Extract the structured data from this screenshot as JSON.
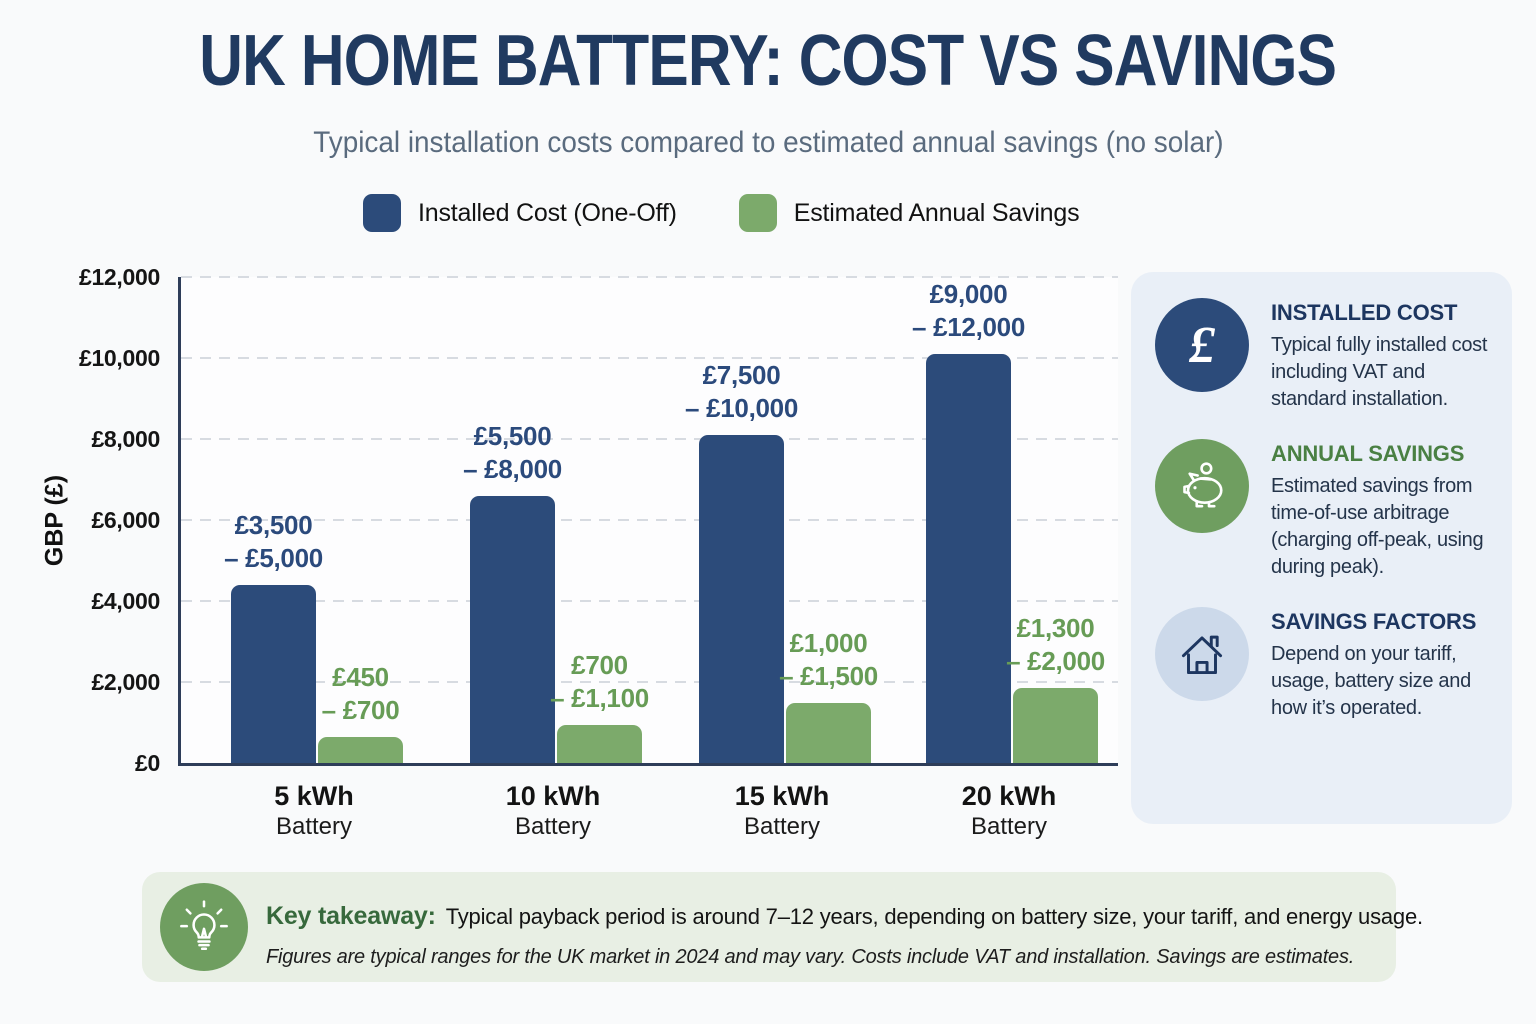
{
  "header": {
    "title": "UK HOME BATTERY: COST VS SAVINGS",
    "subtitle": "Typical installation costs compared to estimated annual savings (no solar)"
  },
  "legend": {
    "items": [
      {
        "label": "Installed Cost (One-Off)",
        "color": "#2c4b7a"
      },
      {
        "label": "Estimated Annual Savings",
        "color": "#7caa6b"
      }
    ]
  },
  "chart_data": {
    "type": "bar",
    "title": "UK Home Battery: Cost vs Savings",
    "categories": [
      "5 kWh",
      "10 kWh",
      "15 kWh",
      "20 kWh"
    ],
    "category_sublabel": "Battery",
    "xlabel": "",
    "ylabel": "GBP (£)",
    "ylim": [
      0,
      12000
    ],
    "ytick_values": [
      0,
      2000,
      4000,
      6000,
      8000,
      10000,
      12000
    ],
    "ytick_labels": [
      "£0",
      "£2,000",
      "£4,000",
      "£6,000",
      "£8,000",
      "£10,000",
      "£12,000"
    ],
    "grid": "horizontal-dashed",
    "legend_position": "top-center",
    "series": [
      {
        "name": "Installed Cost (One-Off)",
        "color": "#2c4b7a",
        "label_color": "#2b4a7c",
        "ranges_gbp": [
          [
            3500,
            5000
          ],
          [
            5500,
            8000
          ],
          [
            7500,
            10000
          ],
          [
            9000,
            12000
          ]
        ],
        "label_lines": [
          [
            "£3,500",
            "– £5,000"
          ],
          [
            "£5,500",
            "– £8,000"
          ],
          [
            "£7,500",
            "– £10,000"
          ],
          [
            "£9,000",
            "– £12,000"
          ]
        ],
        "plotted_values": [
          4400,
          6600,
          8100,
          10100
        ]
      },
      {
        "name": "Estimated Annual Savings",
        "color": "#7caa6b",
        "label_color": "#679c56",
        "ranges_gbp": [
          [
            450,
            700
          ],
          [
            700,
            1100
          ],
          [
            1000,
            1500
          ],
          [
            1300,
            2000
          ]
        ],
        "label_lines": [
          [
            "£450",
            "– £700"
          ],
          [
            "£700",
            "– £1,100"
          ],
          [
            "£1,000",
            "– £1,500"
          ],
          [
            "£1,300",
            "– £2,000"
          ]
        ],
        "plotted_values": [
          650,
          950,
          1480,
          1850
        ]
      }
    ]
  },
  "side_panel": {
    "items": [
      {
        "icon": "pound-sterling",
        "icon_bg": "#2c4b7a",
        "title": "INSTALLED COST",
        "title_color": "#1d3660",
        "body": "Typical fully installed cost including VAT and standard installation."
      },
      {
        "icon": "piggy-bank",
        "icon_bg": "#6f9e60",
        "title": "ANNUAL SAVINGS",
        "title_color": "#4a8043",
        "body": "Estimated savings from time-of-use arbitrage (charging off-peak, using during peak)."
      },
      {
        "icon": "house",
        "icon_bg": "#ccd9ea",
        "title": "SAVINGS FACTORS",
        "title_color": "#1d3660",
        "body": "Depend on your tariff, usage, battery size and how it’s operated."
      }
    ]
  },
  "takeaway": {
    "icon": "lightbulb",
    "icon_bg": "#6f9e60",
    "bg": "#e8efe4",
    "label": "Key takeaway:",
    "text": "Typical payback period is around 7–12 years, depending on battery size, your tariff, and energy usage.",
    "note": "Figures are typical ranges for the UK market in 2024 and may vary. Costs include VAT and installation. Savings are estimates."
  },
  "colors": {
    "page_bg": "#f9fafb",
    "plot_bg": "#fdfdfe",
    "axis": "#2e3d59",
    "gridline": "#d7dbe1",
    "title": "#203a60",
    "subtitle": "#5a6b7e",
    "panel_bg": "#e9eff7"
  }
}
